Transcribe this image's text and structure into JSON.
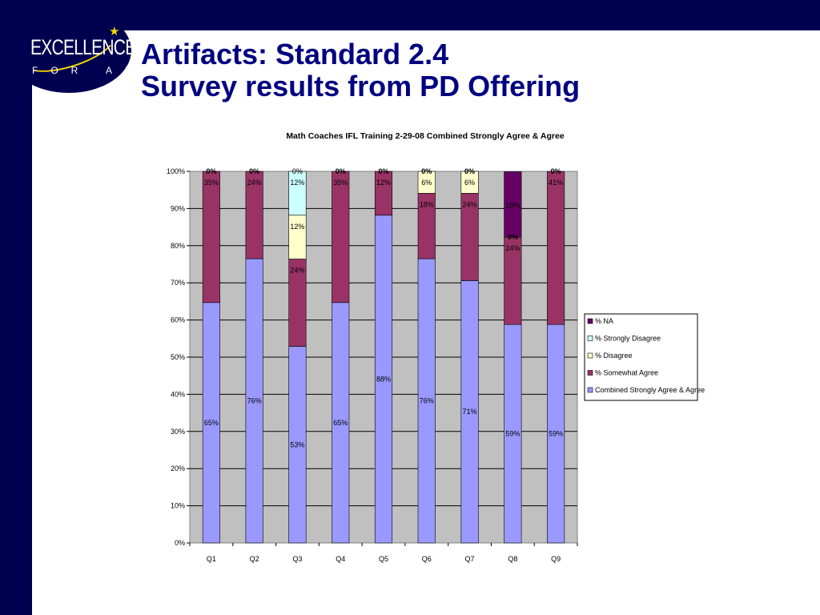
{
  "logo": {
    "line1": "EXCELLENCE",
    "line2": "FOR ALL"
  },
  "slide": {
    "title_line1": "Artifacts: Standard 2.4",
    "title_line2": "Survey results from PD Offering"
  },
  "chart_data": {
    "type": "bar",
    "stacked": true,
    "title": "Math Coaches IFL Training 2-29-08 Combined Strongly Agree & Agree",
    "categories": [
      "Q1",
      "Q2",
      "Q3",
      "Q4",
      "Q5",
      "Q6",
      "Q7",
      "Q8",
      "Q9"
    ],
    "ylim": [
      0,
      100
    ],
    "yticks": [
      "0%",
      "10%",
      "20%",
      "30%",
      "40%",
      "50%",
      "60%",
      "70%",
      "80%",
      "90%",
      "100%"
    ],
    "grid": true,
    "legend_position": "right",
    "series": [
      {
        "name": "Combined Strongly Agree & Agree",
        "color": "#9999ff",
        "values": [
          64.7,
          76.5,
          52.9,
          64.7,
          88.2,
          76.5,
          70.6,
          58.8,
          58.8
        ],
        "labels": [
          "65%",
          "76%",
          "53%",
          "65%",
          "88%",
          "76%",
          "71%",
          "59%",
          "59%"
        ]
      },
      {
        "name": "% Somewhat Agree",
        "color": "#993366",
        "values": [
          35.3,
          23.5,
          23.5,
          35.3,
          11.8,
          17.6,
          23.5,
          23.5,
          41.2
        ],
        "labels": [
          "35%",
          "24%",
          "24%",
          "35%",
          "12%",
          "18%",
          "24%",
          "24%",
          "41%"
        ]
      },
      {
        "name": "% Disagree",
        "color": "#ffffcc",
        "values": [
          0,
          0,
          11.8,
          0,
          0,
          5.9,
          5.9,
          0,
          0
        ],
        "labels": [
          "0%",
          "0%",
          "12%",
          "0%",
          "0%",
          "6%",
          "6%",
          "0%",
          "0%"
        ]
      },
      {
        "name": "% Strongly Disagree",
        "color": "#ccffff",
        "values": [
          0,
          0,
          11.8,
          0,
          0,
          0,
          0,
          0,
          0
        ],
        "labels": [
          "0%",
          "0%",
          "12%",
          "0%",
          "0%",
          "0%",
          "0%",
          "0%",
          "0%"
        ]
      },
      {
        "name": "% NA",
        "color": "#660066",
        "values": [
          0,
          0,
          0,
          0,
          0,
          0,
          0,
          17.6,
          0
        ],
        "labels": [
          "0%",
          "0%",
          "0%",
          "0%",
          "0%",
          "0%",
          "0%",
          "18%",
          "0%"
        ]
      }
    ],
    "legend_order": [
      "% NA",
      "% Strongly Disagree",
      "% Disagree",
      "% Somewhat Agree",
      "Combined Strongly Agree & Agree"
    ]
  }
}
